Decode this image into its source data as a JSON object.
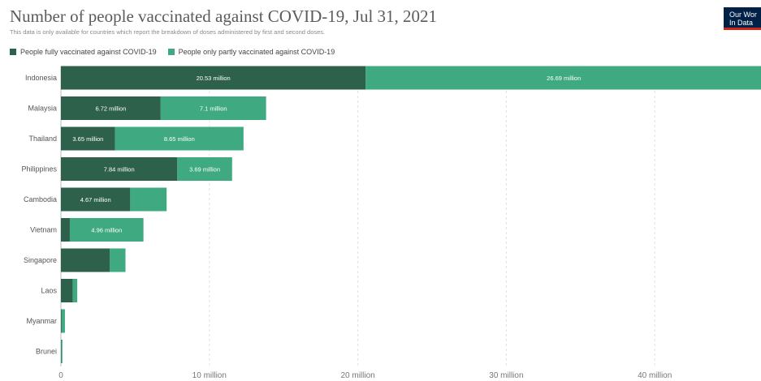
{
  "header": {
    "title": "Number of people vaccinated against COVID-19, Jul 31, 2021",
    "subtitle": "This data is only available for countries which report the breakdown of doses administered by first and second doses.",
    "logo_line1": "Our Wor",
    "logo_line2": "In Data"
  },
  "legend": {
    "items": [
      {
        "label": "People fully vaccinated against COVID-19",
        "color": "#2e614c"
      },
      {
        "label": "People only partly vaccinated against COVID-19",
        "color": "#3fa982"
      }
    ]
  },
  "chart_data": {
    "type": "bar",
    "orientation": "horizontal",
    "stacked": true,
    "title": "Number of people vaccinated against COVID-19, Jul 31, 2021",
    "categories": [
      "Indonesia",
      "Malaysia",
      "Thailand",
      "Philippines",
      "Cambodia",
      "Vietnam",
      "Singapore",
      "Laos",
      "Myanmar",
      "Brunei"
    ],
    "series": [
      {
        "name": "People fully vaccinated against COVID-19",
        "color": "#2e614c",
        "values": [
          20.53,
          6.72,
          3.65,
          7.84,
          4.67,
          0.6,
          3.3,
          0.8,
          0.05,
          0.02
        ],
        "labels": [
          "20.53 million",
          "6.72 million",
          "3.65 million",
          "7.84 million",
          "4.67 million",
          "",
          "",
          "",
          "",
          ""
        ]
      },
      {
        "name": "People only partly vaccinated against COVID-19",
        "color": "#3fa982",
        "values": [
          26.69,
          7.1,
          8.65,
          3.69,
          2.45,
          4.96,
          1.05,
          0.3,
          0.22,
          0.08
        ],
        "labels": [
          "26.69 million",
          "7.1 million",
          "8.65 million",
          "3.69 million",
          "",
          "4.96 million",
          "",
          "",
          "",
          ""
        ]
      }
    ],
    "xlim": [
      0,
      47.3
    ],
    "x_ticks": [
      0,
      10,
      20,
      30,
      40
    ],
    "x_tick_labels": [
      "0",
      "10 million",
      "20 million",
      "30 million",
      "40 million"
    ],
    "grid": "vertical",
    "legend_position": "top-left"
  }
}
